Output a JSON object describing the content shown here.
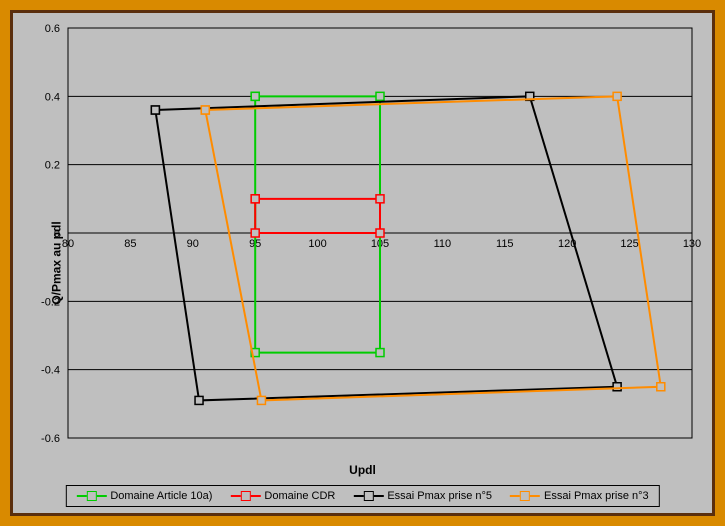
{
  "chart": {
    "type": "line",
    "x_axis": {
      "label": "Updl",
      "min": 80,
      "max": 130,
      "tick_step": 5,
      "ticks": [
        80,
        85,
        90,
        95,
        100,
        105,
        110,
        115,
        120,
        125,
        130
      ]
    },
    "y_axis": {
      "label": "Q/Pmax au pdl",
      "min": -0.6,
      "max": 0.6,
      "tick_step": 0.2,
      "ticks": [
        -0.6,
        -0.4,
        -0.2,
        0,
        0.2,
        0.4,
        0.6
      ]
    },
    "plot_background": "#bfbfbf",
    "grid_color": "#000000",
    "axis_color": "#000000",
    "tick_font_size": 11,
    "label_font_size": 12,
    "legend_font_size": 11,
    "marker": {
      "style": "square",
      "size": 8,
      "fill": null
    },
    "line_width": 2,
    "series": [
      {
        "name": "Domaine Article 10a)",
        "color": "#00cc00",
        "points": [
          {
            "x": 95,
            "y": 0.4
          },
          {
            "x": 105,
            "y": 0.4
          },
          {
            "x": 105,
            "y": -0.35
          },
          {
            "x": 95,
            "y": -0.35
          },
          {
            "x": 95,
            "y": 0.4
          }
        ]
      },
      {
        "name": "Domaine CDR",
        "color": "#ff0000",
        "points": [
          {
            "x": 95,
            "y": 0.1
          },
          {
            "x": 105,
            "y": 0.1
          },
          {
            "x": 105,
            "y": 0.0
          },
          {
            "x": 95,
            "y": 0.0
          },
          {
            "x": 95,
            "y": 0.1
          }
        ]
      },
      {
        "name": "Essai Pmax prise n°5",
        "color": "#000000",
        "points": [
          {
            "x": 87,
            "y": 0.36
          },
          {
            "x": 117,
            "y": 0.4
          },
          {
            "x": 124,
            "y": -0.45
          },
          {
            "x": 90.5,
            "y": -0.49
          },
          {
            "x": 87,
            "y": 0.36
          }
        ]
      },
      {
        "name": "Essai Pmax prise n°3",
        "color": "#ff8c00",
        "points": [
          {
            "x": 91,
            "y": 0.36
          },
          {
            "x": 124,
            "y": 0.4
          },
          {
            "x": 127.5,
            "y": -0.45
          },
          {
            "x": 95.5,
            "y": -0.49
          },
          {
            "x": 91,
            "y": 0.36
          }
        ]
      }
    ]
  }
}
